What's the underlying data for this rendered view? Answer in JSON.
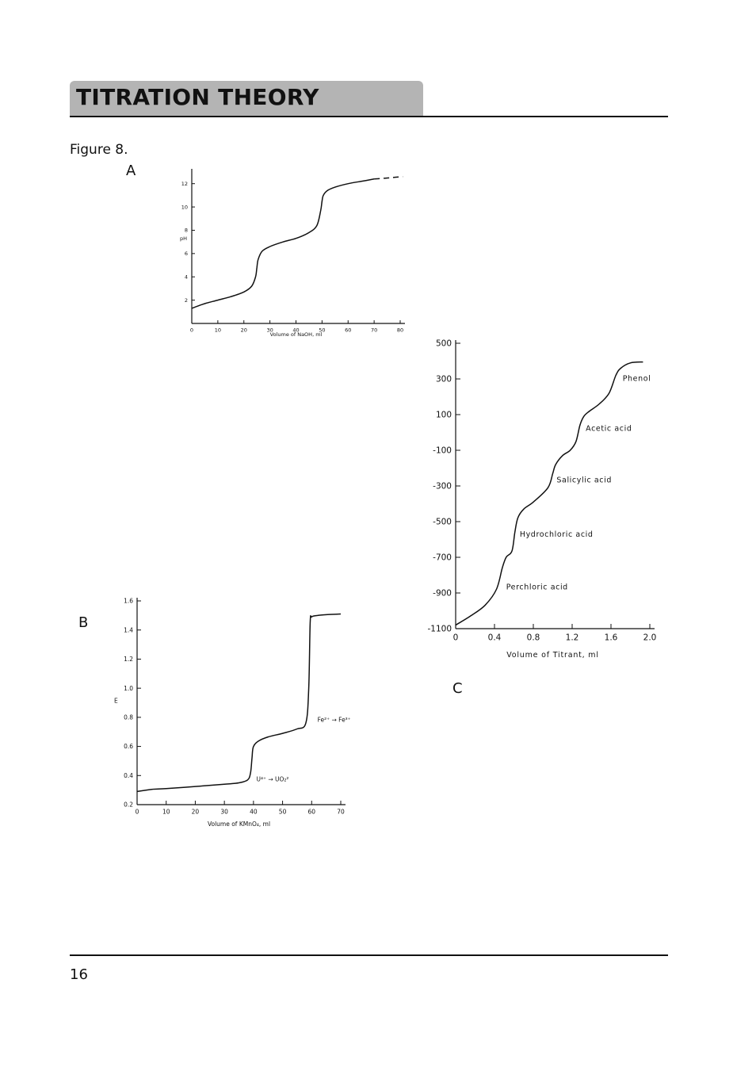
{
  "header": {
    "title": "TITRATION THEORY"
  },
  "figure": {
    "label": "Figure 8."
  },
  "panels": {
    "a": "A",
    "b": "B",
    "c": "C"
  },
  "footer": {
    "page_number": "16"
  },
  "chart_data": [
    {
      "panel": "A",
      "type": "line",
      "xlabel": "Volume of NaOH, ml",
      "ylabel": "pH",
      "xlim": [
        0,
        80
      ],
      "ylim": [
        0,
        13
      ],
      "xticks": [
        0,
        10,
        20,
        30,
        40,
        50,
        60,
        70,
        80
      ],
      "xtick_labels": [
        "0",
        "10",
        "20",
        "30",
        "40",
        "50",
        "60",
        "70",
        "80"
      ],
      "yticks": [
        2,
        4,
        6,
        8,
        10,
        12
      ],
      "ytick_labels": [
        "2",
        "4",
        "6",
        "8",
        "10",
        "12"
      ],
      "series": [
        {
          "x": [
            0,
            5,
            10,
            15,
            20,
            23,
            24.5,
            25,
            25.5,
            27,
            30,
            35,
            40,
            45,
            48,
            49.5,
            50,
            50.5,
            52,
            55,
            60,
            65,
            70
          ],
          "y": [
            1.3,
            1.7,
            2.0,
            2.3,
            2.7,
            3.2,
            4.0,
            4.8,
            5.5,
            6.2,
            6.6,
            7.0,
            7.3,
            7.8,
            8.4,
            9.7,
            10.5,
            11.0,
            11.4,
            11.7,
            12.0,
            12.2,
            12.4
          ]
        },
        {
          "style": "dashed",
          "x": [
            70,
            73,
            76,
            78,
            81
          ],
          "y": [
            12.4,
            12.45,
            12.5,
            12.55,
            12.6
          ]
        }
      ]
    },
    {
      "panel": "B",
      "type": "line",
      "xlabel": "Volume of KMnO₄, ml",
      "ylabel": "E",
      "xlim": [
        0,
        70
      ],
      "ylim": [
        0.2,
        1.6
      ],
      "xticks": [
        0,
        10,
        20,
        30,
        40,
        50,
        60,
        70
      ],
      "xtick_labels": [
        "0",
        "10",
        "20",
        "30",
        "40",
        "50",
        "60",
        "70"
      ],
      "yticks": [
        0.2,
        0.4,
        0.6,
        0.8,
        1.0,
        1.2,
        1.4,
        1.6
      ],
      "ytick_labels": [
        "0.2",
        "0.4",
        "0.6",
        "0.8",
        "1.0",
        "1.2",
        "1.4",
        "1.6"
      ],
      "annotations": [
        {
          "text": "U⁴⁺ → UO₂²",
          "x": 41,
          "y": 0.36
        },
        {
          "text": "Fe²⁺ → Fe³⁺",
          "x": 62,
          "y": 0.77
        }
      ],
      "series": [
        {
          "x": [
            0,
            5,
            10,
            20,
            30,
            35,
            38,
            39,
            39.5,
            40,
            42,
            45,
            50,
            55,
            58,
            59,
            59.5,
            60,
            62,
            65,
            70
          ],
          "y": [
            0.29,
            0.305,
            0.31,
            0.325,
            0.34,
            0.35,
            0.37,
            0.42,
            0.52,
            0.6,
            0.64,
            0.665,
            0.69,
            0.72,
            0.76,
            1.0,
            1.45,
            1.49,
            1.5,
            1.505,
            1.51
          ]
        }
      ]
    },
    {
      "panel": "C",
      "type": "line",
      "xlabel": "Volume of Titrant, ml",
      "xlim": [
        0,
        2.0
      ],
      "ylim": [
        -1100,
        500
      ],
      "xticks": [
        0,
        0.4,
        0.8,
        1.2,
        1.6,
        2.0
      ],
      "xtick_labels": [
        "0",
        "0.4",
        "0.8",
        "1.2",
        "1.6",
        "2.0"
      ],
      "yticks": [
        -1100,
        -900,
        -700,
        -500,
        -300,
        -100,
        100,
        300,
        500
      ],
      "ytick_labels": [
        "-1100",
        "-900",
        "-700",
        "-500",
        "-300",
        "-100",
        "100",
        "300",
        "500"
      ],
      "annotations": [
        {
          "text": "Perchloric acid",
          "x": 0.52,
          "y": -880
        },
        {
          "text": "Hydrochloric acid",
          "x": 0.66,
          "y": -585
        },
        {
          "text": "Salicylic acid",
          "x": 1.04,
          "y": -280
        },
        {
          "text": "Acetic acid",
          "x": 1.34,
          "y": 10
        },
        {
          "text": "Phenol",
          "x": 1.72,
          "y": 290
        }
      ],
      "series": [
        {
          "x": [
            0,
            0.15,
            0.3,
            0.42,
            0.48,
            0.52,
            0.58,
            0.61,
            0.64,
            0.7,
            0.8,
            0.95,
            1.0,
            1.03,
            1.1,
            1.18,
            1.24,
            1.28,
            1.32,
            1.38,
            1.48,
            1.58,
            1.65,
            1.7,
            1.8,
            1.93
          ],
          "y": [
            -1080,
            -1030,
            -970,
            -880,
            -760,
            -700,
            -665,
            -560,
            -480,
            -430,
            -390,
            -310,
            -230,
            -180,
            -130,
            -100,
            -50,
            40,
            90,
            120,
            160,
            220,
            320,
            360,
            390,
            395
          ]
        }
      ]
    }
  ]
}
